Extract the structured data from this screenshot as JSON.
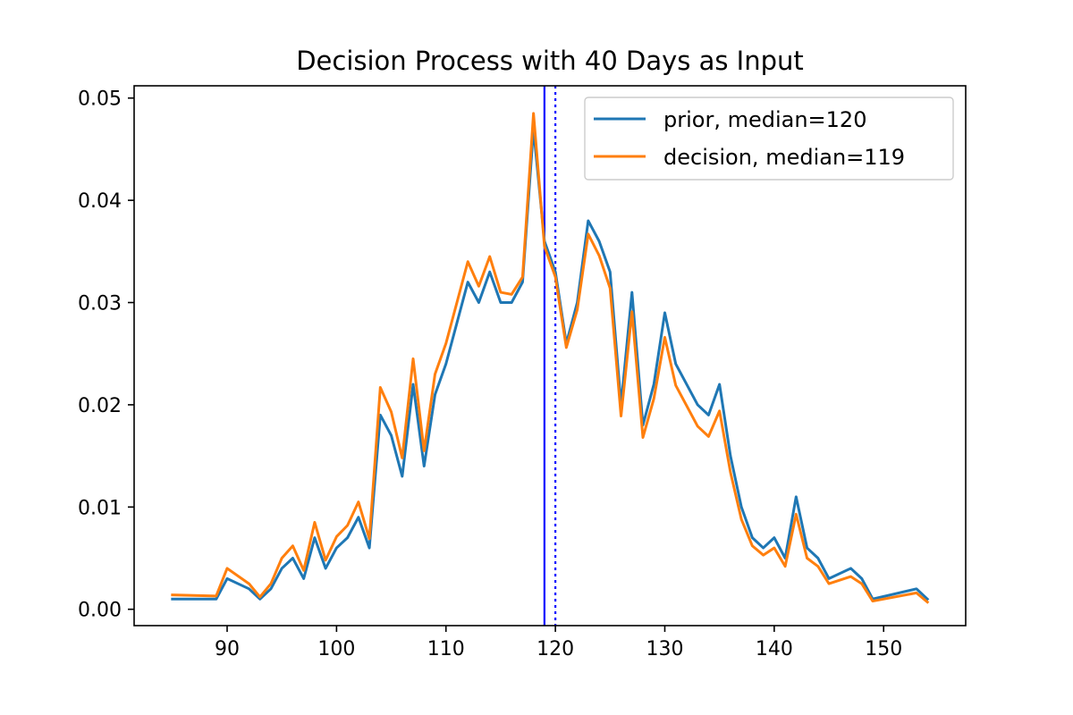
{
  "chart_data": {
    "type": "line",
    "title": "Decision Process with 40 Days as Input",
    "xlabel": "",
    "ylabel": "",
    "xlim": [
      81.5,
      157.5
    ],
    "ylim": [
      -0.0016,
      0.0512
    ],
    "xticks": [
      90,
      100,
      110,
      120,
      130,
      140,
      150
    ],
    "yticks": [
      0.0,
      0.01,
      0.02,
      0.03,
      0.04,
      0.05
    ],
    "ytick_labels": [
      "0.00",
      "0.01",
      "0.02",
      "0.03",
      "0.04",
      "0.05"
    ],
    "grid": false,
    "legend": "top-right",
    "series": [
      {
        "name": "prior, median=120",
        "color": "#1f77b4",
        "x": [
          85,
          89,
          90,
          92,
          93,
          94,
          95,
          96,
          97,
          98,
          99,
          100,
          101,
          102,
          103,
          104,
          105,
          106,
          107,
          108,
          109,
          110,
          111,
          112,
          113,
          114,
          115,
          116,
          117,
          118,
          119,
          120,
          121,
          122,
          123,
          124,
          125,
          126,
          127,
          128,
          129,
          130,
          131,
          132,
          133,
          134,
          135,
          136,
          137,
          138,
          139,
          140,
          141,
          142,
          143,
          144,
          145,
          147,
          148,
          149,
          153,
          154
        ],
        "y": [
          0.001,
          0.001,
          0.003,
          0.002,
          0.001,
          0.002,
          0.004,
          0.005,
          0.003,
          0.007,
          0.004,
          0.006,
          0.007,
          0.009,
          0.006,
          0.019,
          0.017,
          0.013,
          0.022,
          0.014,
          0.021,
          0.024,
          0.028,
          0.032,
          0.03,
          0.033,
          0.03,
          0.03,
          0.032,
          0.047,
          0.036,
          0.033,
          0.026,
          0.03,
          0.038,
          0.036,
          0.033,
          0.02,
          0.031,
          0.018,
          0.022,
          0.029,
          0.024,
          0.022,
          0.02,
          0.019,
          0.022,
          0.015,
          0.01,
          0.007,
          0.006,
          0.007,
          0.005,
          0.011,
          0.006,
          0.005,
          0.003,
          0.004,
          0.003,
          0.001,
          0.002,
          0.001
        ]
      },
      {
        "name": "decision, median=119",
        "color": "#ff7f0e",
        "x": [
          85,
          89,
          90,
          92,
          93,
          94,
          95,
          96,
          97,
          98,
          99,
          100,
          101,
          102,
          103,
          104,
          105,
          106,
          107,
          108,
          109,
          110,
          111,
          112,
          113,
          114,
          115,
          116,
          117,
          118,
          119,
          120,
          121,
          122,
          123,
          124,
          125,
          126,
          127,
          128,
          129,
          130,
          131,
          132,
          133,
          134,
          135,
          136,
          137,
          138,
          139,
          140,
          141,
          142,
          143,
          144,
          145,
          147,
          148,
          149,
          153,
          154
        ],
        "y": [
          0.0014,
          0.0013,
          0.004,
          0.0025,
          0.0012,
          0.0025,
          0.005,
          0.0062,
          0.0038,
          0.0085,
          0.0048,
          0.0071,
          0.0082,
          0.0105,
          0.0069,
          0.0217,
          0.0193,
          0.0148,
          0.0245,
          0.0155,
          0.023,
          0.026,
          0.03,
          0.034,
          0.0316,
          0.0345,
          0.031,
          0.0308,
          0.0325,
          0.0485,
          0.0355,
          0.0325,
          0.0256,
          0.0293,
          0.0367,
          0.0346,
          0.0314,
          0.0189,
          0.0291,
          0.0168,
          0.0206,
          0.0266,
          0.0219,
          0.0199,
          0.0179,
          0.0169,
          0.0194,
          0.0134,
          0.0088,
          0.0062,
          0.0053,
          0.006,
          0.0042,
          0.0093,
          0.005,
          0.0042,
          0.0025,
          0.0032,
          0.0025,
          0.0008,
          0.0016,
          0.0007
        ]
      }
    ],
    "vlines": [
      {
        "x": 119,
        "style": "solid",
        "color": "#0000ff"
      },
      {
        "x": 120,
        "style": "dotted",
        "color": "#0000ff"
      }
    ]
  }
}
